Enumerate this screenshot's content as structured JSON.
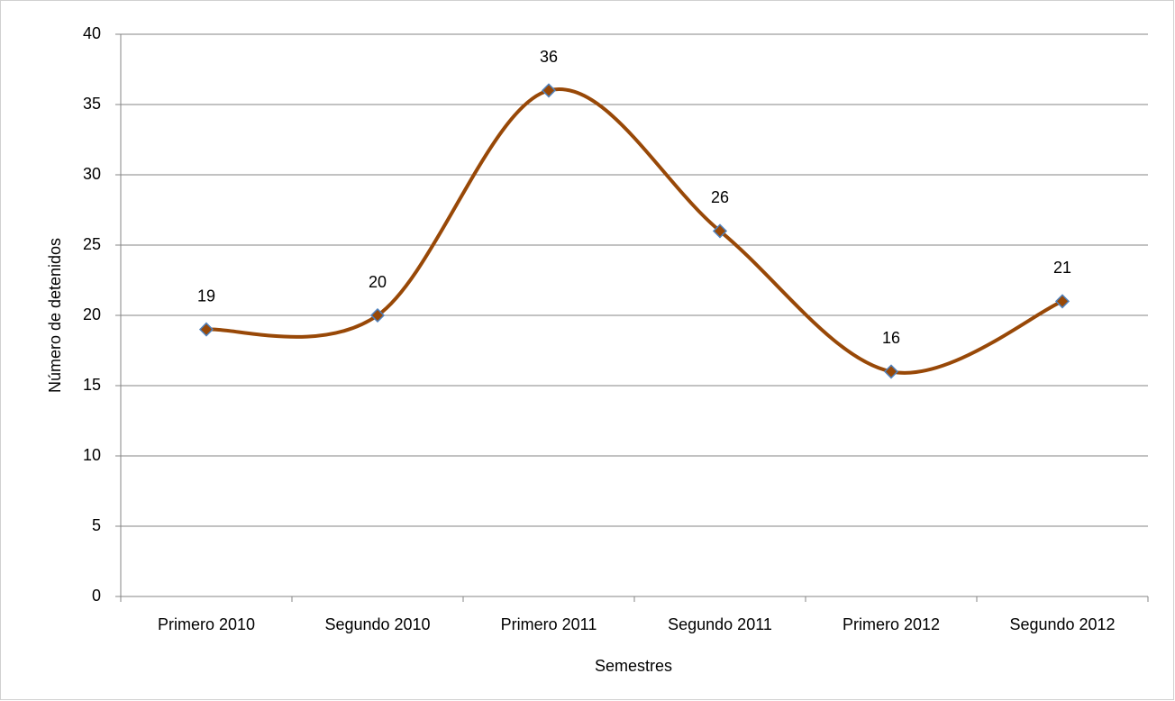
{
  "chart_data": {
    "type": "line",
    "categories": [
      "Primero 2010",
      "Segundo 2010",
      "Primero 2011",
      "Segundo 2011",
      "Primero 2012",
      "Segundo 2012"
    ],
    "values": [
      19,
      20,
      36,
      26,
      16,
      21
    ],
    "color": "#984807",
    "marker_stroke": "#4f81bd",
    "smooth": true,
    "ylabel": "Número de detenidos",
    "xlabel": "Semestres",
    "ylim": [
      0,
      40
    ],
    "yticks": [
      0,
      5,
      10,
      15,
      20,
      25,
      30,
      35,
      40
    ],
    "grid": true
  }
}
